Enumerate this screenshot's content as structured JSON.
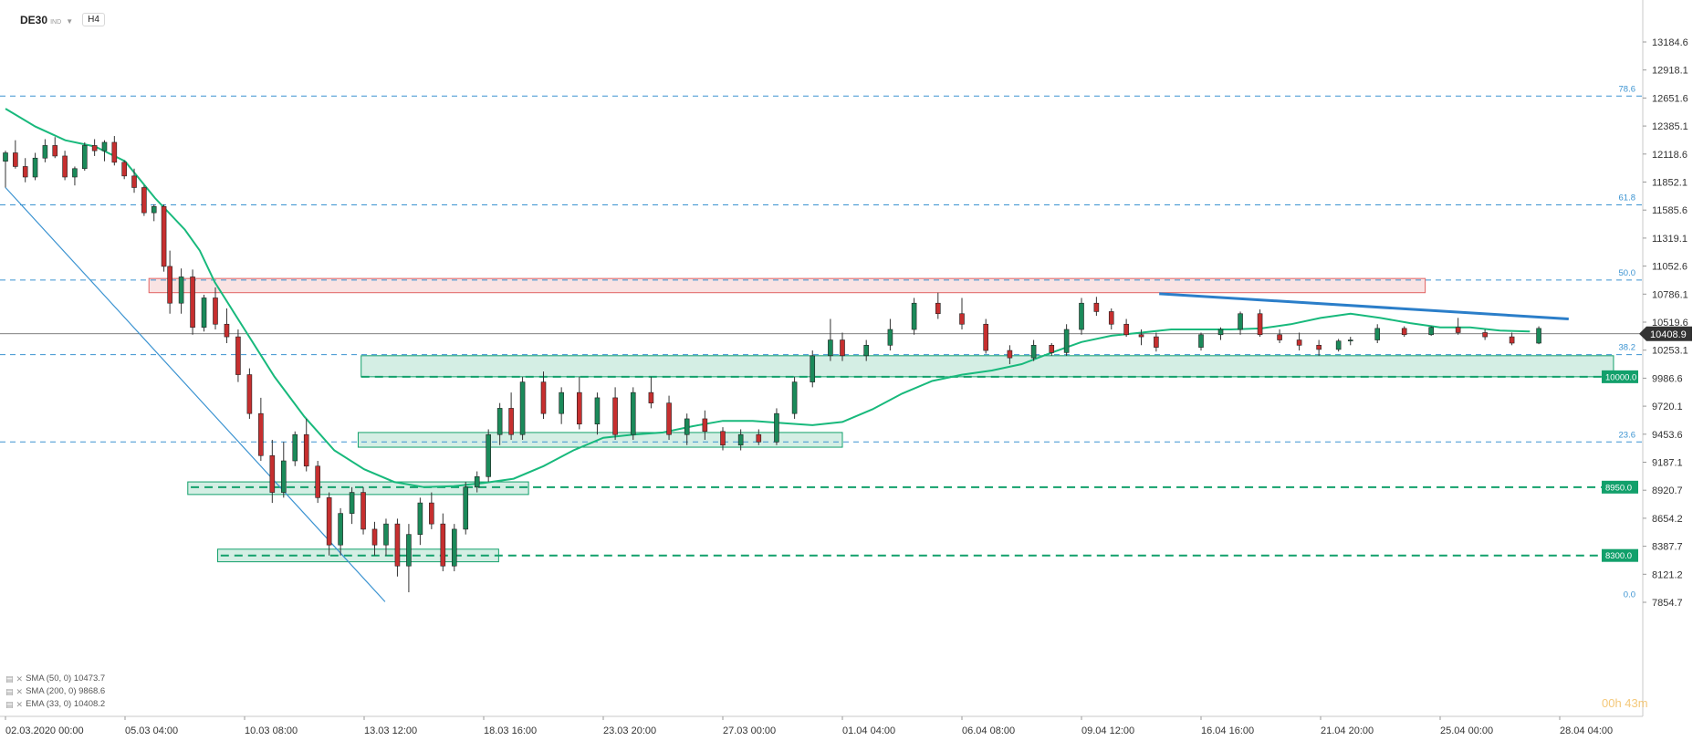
{
  "header": {
    "symbol": "DE30",
    "instrument_badge": "IND",
    "timeframe": "H4"
  },
  "legend": [
    {
      "label": "SMA (50, 0) 10473.7"
    },
    {
      "label": "SMA (200, 0) 9868.6"
    },
    {
      "label": "EMA (33, 0) 10408.2"
    }
  ],
  "watermark": "00h 43m",
  "colors": {
    "bull": "#1b8a5a",
    "bear": "#c62f2f",
    "ema": "#18b97c",
    "fib_line": "#3b93d1",
    "support_zone": "#12a06b",
    "resistance_zone": "#e06262",
    "trendline": "#2b7ec9",
    "price_tag": "#333333"
  },
  "chart_data": {
    "type": "candlestick",
    "y_ticks": [
      "13184.6",
      "12918.1",
      "12651.6",
      "12385.1",
      "12118.6",
      "11852.1",
      "11585.6",
      "11319.1",
      "11052.6",
      "10786.1",
      "10519.6",
      "10253.1",
      "9986.6",
      "9720.1",
      "9453.6",
      "9187.1",
      "8920.7",
      "8654.2",
      "8387.7",
      "8121.2",
      "7854.7"
    ],
    "x_ticks": [
      "02.03.2020  00:00",
      "05.03  04:00",
      "10.03  08:00",
      "13.03  12:00",
      "18.03  16:00",
      "23.03  20:00",
      "27.03  00:00",
      "01.04  04:00",
      "06.04  08:00",
      "09.04  12:00",
      "16.04  16:00",
      "21.04  20:00",
      "25.04  00:00",
      "28.04  04:00"
    ],
    "current_price": "10408.9",
    "fib_levels": [
      {
        "label": "78.6",
        "value": 12670
      },
      {
        "label": "61.8",
        "value": 11635
      },
      {
        "label": "50.0",
        "value": 10920
      },
      {
        "label": "38.2",
        "value": 10210
      },
      {
        "label": "23.6",
        "value": 9380
      },
      {
        "label": "0.0",
        "value": 7860
      }
    ],
    "horizontal_levels": [
      {
        "label": "10000.0",
        "value": 10000
      },
      {
        "label": "8950.0",
        "value": 8950
      },
      {
        "label": "8300.0",
        "value": 8300
      }
    ],
    "zones": [
      {
        "kind": "resistance",
        "x0": 4.8,
        "x1": 47.5,
        "y0": 10800,
        "y1": 10935
      },
      {
        "kind": "support",
        "x0": 11.9,
        "x1": 53.8,
        "y0": 10000,
        "y1": 10200
      },
      {
        "kind": "support",
        "x0": 11.8,
        "x1": 28.0,
        "y0": 9330,
        "y1": 9470
      },
      {
        "kind": "support",
        "x0": 6.1,
        "x1": 17.5,
        "y0": 8880,
        "y1": 9000
      },
      {
        "kind": "support",
        "x0": 7.1,
        "x1": 16.5,
        "y0": 8240,
        "y1": 8360
      }
    ],
    "trendlines": [
      {
        "kind": "descending",
        "x0": 0.0,
        "y0": 11800,
        "x1": 12.7,
        "y1": 7860
      },
      {
        "kind": "resistance",
        "x0": 38.6,
        "y0": 10790,
        "x1": 52.3,
        "y1": 10550
      }
    ],
    "ema_series": [
      [
        0.0,
        12550
      ],
      [
        1.0,
        12380
      ],
      [
        2.0,
        12250
      ],
      [
        3.0,
        12190
      ],
      [
        4.0,
        12050
      ],
      [
        5.0,
        11700
      ],
      [
        6.0,
        11400
      ],
      [
        6.5,
        11200
      ],
      [
        7.0,
        10900
      ],
      [
        8.0,
        10450
      ],
      [
        9.0,
        10000
      ],
      [
        10.0,
        9620
      ],
      [
        11.0,
        9300
      ],
      [
        12.0,
        9120
      ],
      [
        13.0,
        9000
      ],
      [
        14.0,
        8950
      ],
      [
        15.0,
        8960
      ],
      [
        16.0,
        8990
      ],
      [
        17.0,
        9030
      ],
      [
        18.0,
        9150
      ],
      [
        19.0,
        9300
      ],
      [
        20.0,
        9420
      ],
      [
        21.0,
        9450
      ],
      [
        22.0,
        9470
      ],
      [
        23.0,
        9530
      ],
      [
        24.0,
        9580
      ],
      [
        25.0,
        9580
      ],
      [
        26.0,
        9560
      ],
      [
        27.0,
        9540
      ],
      [
        28.0,
        9570
      ],
      [
        29.0,
        9690
      ],
      [
        30.0,
        9840
      ],
      [
        31.0,
        9960
      ],
      [
        32.0,
        10020
      ],
      [
        33.0,
        10060
      ],
      [
        34.0,
        10120
      ],
      [
        35.0,
        10230
      ],
      [
        36.0,
        10330
      ],
      [
        37.0,
        10390
      ],
      [
        38.0,
        10420
      ],
      [
        39.0,
        10450
      ],
      [
        40.0,
        10450
      ],
      [
        41.0,
        10450
      ],
      [
        42.0,
        10460
      ],
      [
        43.0,
        10500
      ],
      [
        44.0,
        10560
      ],
      [
        45.0,
        10600
      ],
      [
        46.0,
        10560
      ],
      [
        47.0,
        10510
      ],
      [
        48.0,
        10470
      ],
      [
        49.0,
        10470
      ],
      [
        50.0,
        10440
      ],
      [
        51.0,
        10430
      ]
    ],
    "candles": [
      [
        12050,
        12150,
        11800,
        12130
      ],
      [
        12130,
        12250,
        11980,
        12000
      ],
      [
        12000,
        12080,
        11850,
        11900
      ],
      [
        11900,
        12130,
        11870,
        12080
      ],
      [
        12080,
        12260,
        12040,
        12200
      ],
      [
        12200,
        12280,
        12080,
        12100
      ],
      [
        12100,
        12150,
        11870,
        11900
      ],
      [
        11900,
        12000,
        11820,
        11980
      ],
      [
        11980,
        12230,
        11960,
        12200
      ],
      [
        12200,
        12260,
        12100,
        12150
      ],
      [
        12150,
        12250,
        12050,
        12230
      ],
      [
        12230,
        12290,
        12010,
        12040
      ],
      [
        12040,
        12060,
        11880,
        11910
      ],
      [
        11910,
        11980,
        11750,
        11800
      ],
      [
        11800,
        11820,
        11530,
        11560
      ],
      [
        11560,
        11640,
        11480,
        11620
      ],
      [
        11620,
        11640,
        11000,
        11050
      ],
      [
        11050,
        11200,
        10600,
        10700
      ],
      [
        10700,
        11030,
        10600,
        10950
      ],
      [
        10950,
        11020,
        10400,
        10470
      ],
      [
        10470,
        10780,
        10430,
        10750
      ],
      [
        10750,
        10850,
        10450,
        10500
      ],
      [
        10500,
        10650,
        10320,
        10380
      ],
      [
        10380,
        10450,
        9950,
        10020
      ],
      [
        10020,
        10080,
        9600,
        9650
      ],
      [
        9650,
        9800,
        9200,
        9250
      ],
      [
        9250,
        9400,
        8800,
        8900
      ],
      [
        8900,
        9380,
        8850,
        9200
      ],
      [
        9200,
        9480,
        9150,
        9450
      ],
      [
        9450,
        9600,
        9100,
        9150
      ],
      [
        9150,
        9200,
        8800,
        8850
      ],
      [
        8850,
        8900,
        8300,
        8400
      ],
      [
        8400,
        8750,
        8300,
        8700
      ],
      [
        8700,
        8950,
        8600,
        8900
      ],
      [
        8900,
        8950,
        8500,
        8550
      ],
      [
        8550,
        8620,
        8300,
        8400
      ],
      [
        8400,
        8650,
        8300,
        8600
      ],
      [
        8600,
        8650,
        8100,
        8200
      ],
      [
        8200,
        8600,
        7950,
        8500
      ],
      [
        8500,
        8850,
        8400,
        8800
      ],
      [
        8800,
        8900,
        8550,
        8600
      ],
      [
        8600,
        8700,
        8150,
        8200
      ],
      [
        8200,
        8600,
        8150,
        8550
      ],
      [
        8550,
        9000,
        8500,
        8950
      ],
      [
        8950,
        9100,
        8900,
        9050
      ],
      [
        9050,
        9500,
        9000,
        9450
      ],
      [
        9450,
        9750,
        9350,
        9700
      ],
      [
        9700,
        9850,
        9400,
        9450
      ],
      [
        9450,
        10000,
        9400,
        9950
      ],
      [
        9950,
        10050,
        9600,
        9650
      ],
      [
        9650,
        9900,
        9550,
        9850
      ],
      [
        9850,
        10000,
        9500,
        9550
      ],
      [
        9550,
        9850,
        9450,
        9800
      ],
      [
        9800,
        9900,
        9400,
        9450
      ],
      [
        9450,
        9900,
        9400,
        9850
      ],
      [
        9850,
        10000,
        9700,
        9750
      ],
      [
        9750,
        9820,
        9400,
        9450
      ],
      [
        9450,
        9650,
        9350,
        9600
      ],
      [
        9600,
        9680,
        9400,
        9480
      ],
      [
        9480,
        9520,
        9300,
        9350
      ],
      [
        9350,
        9500,
        9300,
        9450
      ],
      [
        9450,
        9500,
        9350,
        9380
      ],
      [
        9380,
        9700,
        9350,
        9650
      ],
      [
        9650,
        10000,
        9600,
        9950
      ],
      [
        9950,
        10250,
        9900,
        10200
      ],
      [
        10200,
        10550,
        10150,
        10350
      ],
      [
        10350,
        10420,
        10150,
        10200
      ],
      [
        10200,
        10350,
        10150,
        10300
      ],
      [
        10300,
        10550,
        10250,
        10450
      ],
      [
        10450,
        10750,
        10400,
        10700
      ],
      [
        10700,
        10800,
        10550,
        10600
      ],
      [
        10600,
        10750,
        10450,
        10500
      ],
      [
        10500,
        10550,
        10220,
        10250
      ],
      [
        10250,
        10300,
        10120,
        10180
      ],
      [
        10180,
        10350,
        10150,
        10300
      ],
      [
        10300,
        10320,
        10200,
        10230
      ],
      [
        10230,
        10500,
        10200,
        10450
      ],
      [
        10450,
        10750,
        10400,
        10700
      ],
      [
        10700,
        10760,
        10580,
        10620
      ],
      [
        10620,
        10650,
        10450,
        10500
      ],
      [
        10500,
        10550,
        10380,
        10400
      ],
      [
        10400,
        10450,
        10300,
        10380
      ],
      [
        10380,
        10420,
        10240,
        10280
      ],
      [
        10280,
        10420,
        10250,
        10400
      ],
      [
        10400,
        10470,
        10350,
        10450
      ],
      [
        10450,
        10620,
        10400,
        10600
      ],
      [
        10600,
        10640,
        10380,
        10400
      ],
      [
        10400,
        10450,
        10320,
        10350
      ],
      [
        10350,
        10420,
        10250,
        10300
      ],
      [
        10300,
        10350,
        10200,
        10260
      ],
      [
        10260,
        10360,
        10240,
        10340
      ],
      [
        10340,
        10380,
        10300,
        10350
      ],
      [
        10350,
        10500,
        10320,
        10460
      ],
      [
        10460,
        10480,
        10380,
        10400
      ],
      [
        10400,
        10480,
        10390,
        10470
      ],
      [
        10470,
        10560,
        10400,
        10420
      ],
      [
        10420,
        10450,
        10350,
        10380
      ],
      [
        10380,
        10420,
        10300,
        10320
      ],
      [
        10320,
        10480,
        10310,
        10460
      ]
    ]
  }
}
